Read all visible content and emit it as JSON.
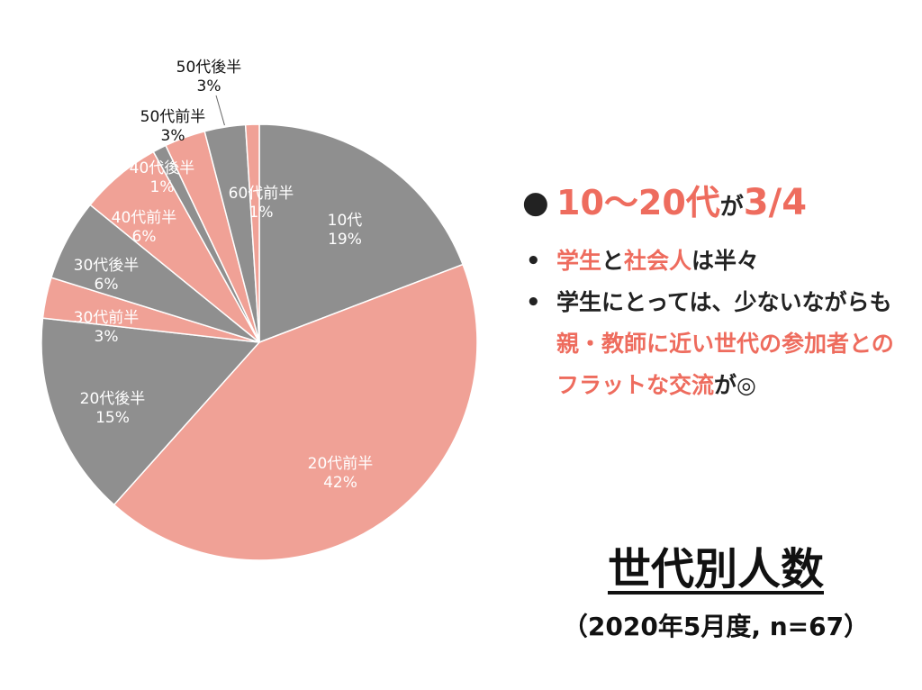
{
  "chart_data": {
    "type": "pie",
    "slices": [
      {
        "name": "10代",
        "value": 19,
        "label": "19%",
        "color": "#8f8f8f"
      },
      {
        "name": "20代前半",
        "value": 42,
        "label": "42%",
        "color": "#f0a196"
      },
      {
        "name": "20代後半",
        "value": 15,
        "label": "15%",
        "color": "#8f8f8f"
      },
      {
        "name": "30代前半",
        "value": 3,
        "label": "3%",
        "color": "#f0a196"
      },
      {
        "name": "30代後半",
        "value": 6,
        "label": "6%",
        "color": "#8f8f8f"
      },
      {
        "name": "40代前半",
        "value": 6,
        "label": "6%",
        "color": "#f0a196"
      },
      {
        "name": "40代後半",
        "value": 1,
        "label": "1%",
        "color": "#8f8f8f"
      },
      {
        "name": "50代前半",
        "value": 3,
        "label": "3%",
        "color": "#f0a196"
      },
      {
        "name": "50代後半",
        "value": 3,
        "label": "3%",
        "color": "#8f8f8f"
      },
      {
        "name": "60代前半",
        "value": 1,
        "label": "1%",
        "color": "#f0a196"
      }
    ]
  },
  "bullets": {
    "main": {
      "part1": "10〜20代",
      "part2": "が",
      "part3": "3/4"
    },
    "item1": {
      "a": "学生",
      "b": "と",
      "c": "社会人",
      "d": "は半々"
    },
    "item2": {
      "a": "学生にとっては、少ないながらも",
      "b": "親・教師に近い世代の参加者とのフラットな交流",
      "c": "が◎"
    }
  },
  "title": "世代別人数",
  "subtitle": "（2020年5月度, n=67）",
  "colors": {
    "accent": "#ee6c5e",
    "gray": "#8f8f8f",
    "pink": "#f0a196"
  }
}
